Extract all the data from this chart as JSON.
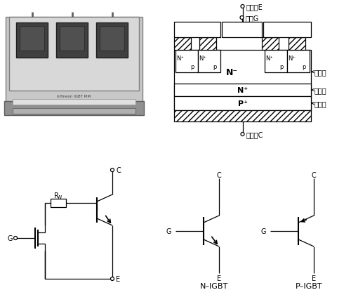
{
  "bg_color": "#ffffff",
  "line_color": "#000000",
  "font_size": 7,
  "labels": {
    "emitter": "发射极E",
    "gate": "栅极G",
    "collector": "集电极C",
    "drift": "漂移区",
    "buffer": "缓冲区",
    "injection": "注入区",
    "N_IGBT": "N–IGBT",
    "P_IGBT": "P–IGBT",
    "C": "C",
    "G": "G",
    "E": "E"
  }
}
